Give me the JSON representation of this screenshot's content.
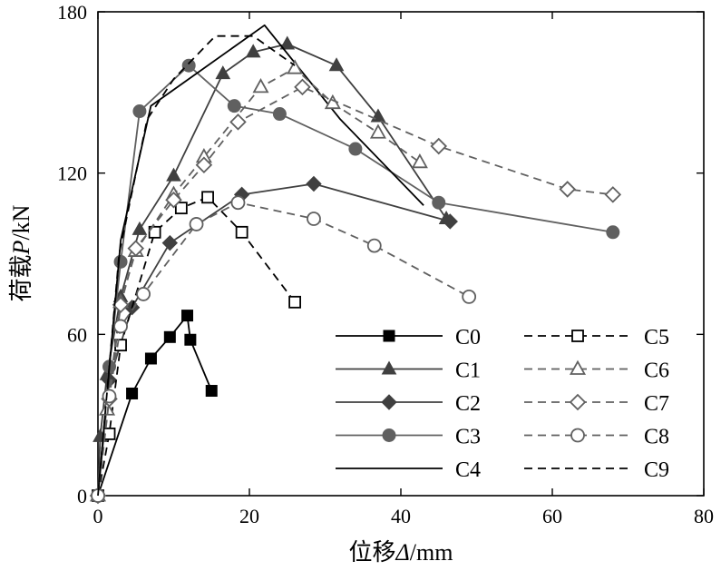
{
  "chart_data": {
    "type": "line",
    "xlabel": {
      "prefix": "位移",
      "symbol": "Δ",
      "suffix": "/mm"
    },
    "ylabel": {
      "prefix": "荷载",
      "symbol": "P",
      "suffix": "/kN"
    },
    "xlim": [
      0,
      80
    ],
    "ylim": [
      0,
      180
    ],
    "xticks": [
      0,
      20,
      40,
      60,
      80
    ],
    "yticks": [
      0,
      60,
      120,
      180
    ],
    "legend_position": "lower-right",
    "series": [
      {
        "name": "C0",
        "color": "#000000",
        "dash": "solid",
        "marker": "square-filled",
        "x": [
          0,
          4.5,
          7,
          9.5,
          11.8,
          12.2,
          15
        ],
        "y": [
          0,
          38,
          51,
          59,
          67,
          58,
          39
        ]
      },
      {
        "name": "C1",
        "color": "#404040",
        "dash": "solid",
        "marker": "triangle-filled",
        "x": [
          0,
          0.3,
          1.2,
          3,
          5.5,
          10,
          16.5,
          20.5,
          25,
          31.5,
          37,
          46
        ],
        "y": [
          0,
          22,
          45,
          74,
          99,
          119,
          157,
          165,
          168,
          160,
          141,
          103
        ]
      },
      {
        "name": "C2",
        "color": "#404040",
        "dash": "solid",
        "marker": "diamond-filled",
        "x": [
          0,
          1.5,
          4.5,
          9.5,
          19,
          28.5,
          46.5
        ],
        "y": [
          0,
          43,
          70,
          94,
          112,
          116,
          102
        ]
      },
      {
        "name": "C3",
        "color": "#606060",
        "dash": "solid",
        "marker": "circle-filled",
        "x": [
          0,
          1.5,
          3,
          5.5,
          12,
          18,
          24,
          34,
          45,
          68
        ],
        "y": [
          0,
          48,
          87,
          143,
          160,
          145,
          142,
          129,
          109,
          98
        ]
      },
      {
        "name": "C4",
        "color": "#000000",
        "dash": "solid",
        "marker": "none",
        "x": [
          0,
          3,
          7,
          12,
          22,
          32,
          43
        ],
        "y": [
          0,
          95,
          145,
          155,
          175,
          140,
          108
        ]
      },
      {
        "name": "C5",
        "color": "#000000",
        "dash": "dashed",
        "marker": "square-open",
        "x": [
          0,
          1.5,
          3,
          7.5,
          11,
          14.5,
          19,
          26
        ],
        "y": [
          0,
          23,
          56,
          98,
          107,
          111,
          98,
          72
        ]
      },
      {
        "name": "C6",
        "color": "#606060",
        "dash": "dashed",
        "marker": "triangle-open",
        "x": [
          0,
          1.2,
          3,
          5,
          10,
          14,
          21.5,
          26,
          31,
          37,
          42.5
        ],
        "y": [
          0,
          32,
          72,
          91,
          112,
          126,
          152,
          159,
          146,
          135,
          124
        ]
      },
      {
        "name": "C7",
        "color": "#606060",
        "dash": "dashed",
        "marker": "diamond-open",
        "x": [
          0,
          1.5,
          3,
          5,
          10,
          14,
          18.5,
          27,
          45,
          62,
          68
        ],
        "y": [
          0,
          36,
          71,
          92,
          110,
          123,
          139,
          152,
          130,
          114,
          112
        ]
      },
      {
        "name": "C8",
        "color": "#606060",
        "dash": "dashed",
        "marker": "circle-open",
        "x": [
          0,
          1.5,
          3,
          6,
          13,
          18.5,
          28.5,
          36.5,
          49
        ],
        "y": [
          0,
          37,
          63,
          75,
          101,
          109,
          103,
          93,
          74
        ]
      },
      {
        "name": "C9",
        "color": "#000000",
        "dash": "dashed",
        "marker": "none",
        "x": [
          0,
          2.8,
          6.5,
          10,
          15.5,
          20.5,
          26
        ],
        "y": [
          0,
          90,
          140,
          155,
          171,
          171,
          160
        ]
      }
    ]
  }
}
